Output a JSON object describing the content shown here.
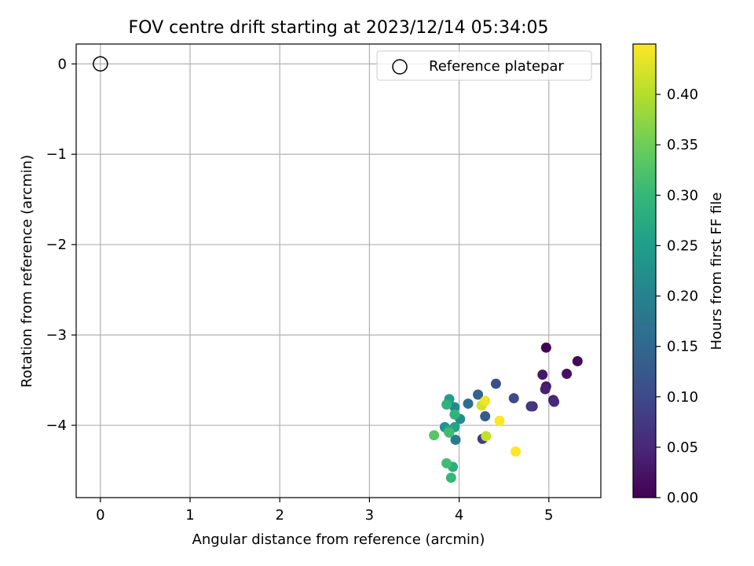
{
  "chart_data": {
    "type": "scatter",
    "title": "FOV centre drift starting at 2023/12/14 05:34:05",
    "xlabel": "Angular distance from reference (arcmin)",
    "ylabel": "Rotation from reference (arcmin)",
    "xlim": [
      -0.27,
      5.58
    ],
    "ylim": [
      -4.8,
      0.22
    ],
    "xticks": [
      0,
      1,
      2,
      3,
      4,
      5
    ],
    "yticks": [
      0,
      -1,
      -2,
      -3,
      -4
    ],
    "grid": true,
    "legend": {
      "position": "top-right",
      "entries": [
        "Reference platepar"
      ]
    },
    "reference_point": {
      "x": 0,
      "y": 0,
      "label": "Reference platepar",
      "marker": "open-circle"
    },
    "colorbar": {
      "label": "Hours from first FF file",
      "min": 0.0,
      "max": 0.45,
      "ticks": [
        0.0,
        0.05,
        0.1,
        0.15,
        0.2,
        0.25,
        0.3,
        0.35,
        0.4
      ],
      "tick_labels": [
        "0.00",
        "0.05",
        "0.10",
        "0.15",
        "0.20",
        "0.25",
        "0.30",
        "0.35",
        "0.40"
      ],
      "colormap": "viridis"
    },
    "points": [
      {
        "x": 4.97,
        "y": -3.14,
        "hours": 0.0
      },
      {
        "x": 5.32,
        "y": -3.29,
        "hours": 0.01
      },
      {
        "x": 5.2,
        "y": -3.43,
        "hours": 0.02
      },
      {
        "x": 4.93,
        "y": -3.44,
        "hours": 0.03
      },
      {
        "x": 4.97,
        "y": -3.57,
        "hours": 0.03
      },
      {
        "x": 4.96,
        "y": -3.6,
        "hours": 0.04
      },
      {
        "x": 5.05,
        "y": -3.72,
        "hours": 0.04
      },
      {
        "x": 5.06,
        "y": -3.74,
        "hours": 0.05
      },
      {
        "x": 4.82,
        "y": -3.79,
        "hours": 0.06
      },
      {
        "x": 4.8,
        "y": -3.79,
        "hours": 0.07
      },
      {
        "x": 4.26,
        "y": -4.15,
        "hours": 0.08
      },
      {
        "x": 4.61,
        "y": -3.7,
        "hours": 0.1
      },
      {
        "x": 4.41,
        "y": -3.54,
        "hours": 0.11
      },
      {
        "x": 4.29,
        "y": -3.9,
        "hours": 0.13
      },
      {
        "x": 4.21,
        "y": -3.66,
        "hours": 0.14
      },
      {
        "x": 4.1,
        "y": -3.76,
        "hours": 0.16
      },
      {
        "x": 3.96,
        "y": -4.16,
        "hours": 0.19
      },
      {
        "x": 3.95,
        "y": -3.8,
        "hours": 0.21
      },
      {
        "x": 4.01,
        "y": -3.93,
        "hours": 0.22
      },
      {
        "x": 3.84,
        "y": -4.02,
        "hours": 0.23
      },
      {
        "x": 3.89,
        "y": -3.71,
        "hours": 0.25
      },
      {
        "x": 3.95,
        "y": -4.02,
        "hours": 0.26
      },
      {
        "x": 3.88,
        "y": -4.06,
        "hours": 0.27
      },
      {
        "x": 3.93,
        "y": -4.46,
        "hours": 0.28
      },
      {
        "x": 3.86,
        "y": -3.77,
        "hours": 0.29
      },
      {
        "x": 3.95,
        "y": -3.88,
        "hours": 0.29
      },
      {
        "x": 3.91,
        "y": -4.58,
        "hours": 0.3
      },
      {
        "x": 3.86,
        "y": -4.42,
        "hours": 0.31
      },
      {
        "x": 3.89,
        "y": -4.08,
        "hours": 0.31
      },
      {
        "x": 3.72,
        "y": -4.11,
        "hours": 0.33
      },
      {
        "x": 4.3,
        "y": -4.12,
        "hours": 0.41
      },
      {
        "x": 4.25,
        "y": -3.78,
        "hours": 0.42
      },
      {
        "x": 4.29,
        "y": -3.73,
        "hours": 0.44
      },
      {
        "x": 4.45,
        "y": -3.95,
        "hours": 0.45
      },
      {
        "x": 4.63,
        "y": -4.29,
        "hours": 0.45
      }
    ]
  }
}
